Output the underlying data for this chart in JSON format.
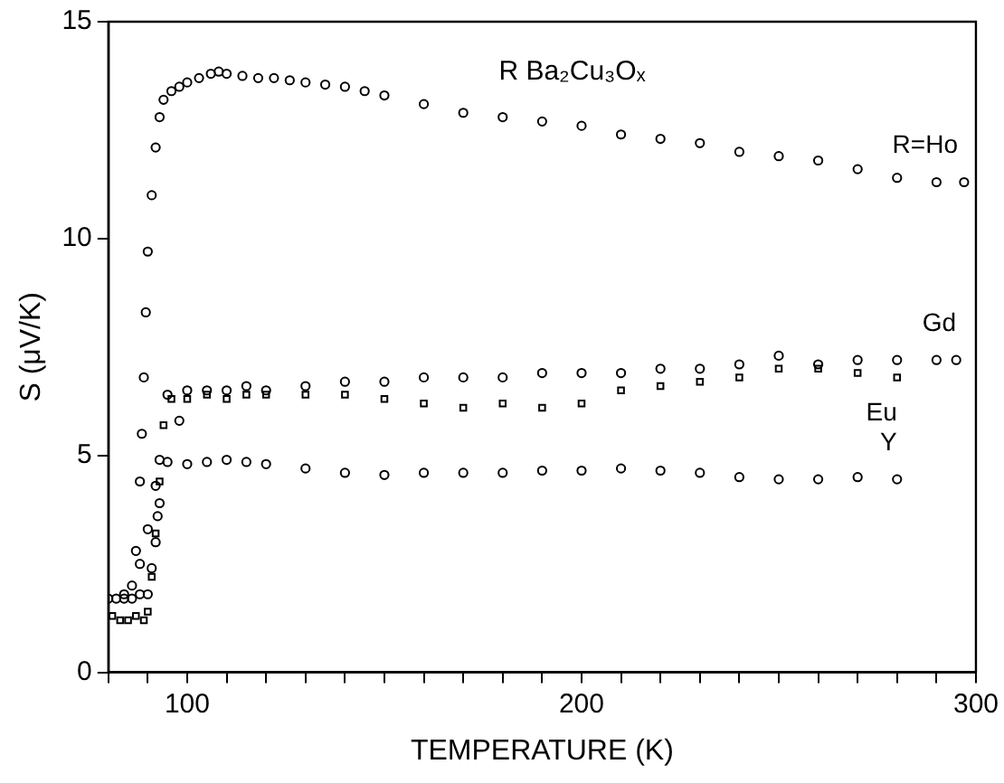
{
  "chart_data": {
    "type": "scatter",
    "xlabel": "TEMPERATURE (K)",
    "ylabel": "S (μV/K)",
    "annotations": [
      "R Ba₂Cu₃Oₓ"
    ],
    "xlim": [
      80,
      300
    ],
    "ylim": [
      0,
      15
    ],
    "xticks": [
      {
        "value": 80,
        "label": null
      },
      {
        "value": 90,
        "label": null
      },
      100,
      {
        "value": 110,
        "label": null
      },
      {
        "value": 120,
        "label": null
      },
      {
        "value": 130,
        "label": null
      },
      {
        "value": 140,
        "label": null
      },
      {
        "value": 150,
        "label": null
      },
      {
        "value": 160,
        "label": null
      },
      {
        "value": 170,
        "label": null
      },
      {
        "value": 180,
        "label": null
      },
      {
        "value": 190,
        "label": null
      },
      200,
      {
        "value": 210,
        "label": null
      },
      {
        "value": 220,
        "label": null
      },
      {
        "value": 230,
        "label": null
      },
      {
        "value": 240,
        "label": null
      },
      {
        "value": 250,
        "label": null
      },
      {
        "value": 260,
        "label": null
      },
      {
        "value": 270,
        "label": null
      },
      {
        "value": 280,
        "label": null
      },
      {
        "value": 290,
        "label": null
      },
      300
    ],
    "yticks": [
      0,
      5,
      10,
      15
    ],
    "grid": false,
    "legend": false,
    "series": [
      {
        "name": "R=Ho",
        "color": "#000000",
        "marker": "circle",
        "x": [
          87,
          88,
          88.5,
          89,
          89.5,
          90,
          91,
          92,
          93,
          94,
          96,
          98,
          100,
          103,
          106,
          108,
          110,
          114,
          118,
          122,
          126,
          130,
          135,
          140,
          145,
          150,
          160,
          170,
          180,
          190,
          200,
          210,
          220,
          230,
          240,
          250,
          260,
          270,
          280,
          290,
          297
        ],
        "values": [
          2.8,
          4.4,
          5.5,
          6.8,
          8.3,
          9.7,
          11.0,
          12.1,
          12.8,
          13.2,
          13.4,
          13.5,
          13.6,
          13.7,
          13.8,
          13.85,
          13.8,
          13.75,
          13.7,
          13.7,
          13.65,
          13.6,
          13.55,
          13.5,
          13.4,
          13.3,
          13.1,
          12.9,
          12.8,
          12.7,
          12.6,
          12.4,
          12.3,
          12.2,
          12.0,
          11.9,
          11.8,
          11.6,
          11.4,
          11.3,
          11.3
        ]
      },
      {
        "name": "Gd",
        "color": "#000000",
        "marker": "circle",
        "x": [
          80,
          82,
          84,
          86,
          88,
          90,
          91,
          92,
          92.5,
          93,
          95,
          98,
          100,
          105,
          110,
          115,
          120,
          130,
          140,
          150,
          160,
          170,
          180,
          190,
          200,
          210,
          220,
          230,
          240,
          250,
          260,
          270,
          280,
          290,
          295
        ],
        "values": [
          1.7,
          1.7,
          1.8,
          1.7,
          1.8,
          1.8,
          2.4,
          3.0,
          3.6,
          3.9,
          6.4,
          5.8,
          6.5,
          6.5,
          6.5,
          6.6,
          6.5,
          6.6,
          6.7,
          6.7,
          6.8,
          6.8,
          6.8,
          6.9,
          6.9,
          6.9,
          7.0,
          7.0,
          7.1,
          7.3,
          7.1,
          7.2,
          7.2,
          7.2,
          7.2
        ]
      },
      {
        "name": "Eu",
        "color": "#000000",
        "marker": "square",
        "x": [
          81,
          83,
          85,
          87,
          89,
          90,
          91,
          92,
          93,
          94,
          96,
          100,
          105,
          110,
          115,
          120,
          130,
          140,
          150,
          160,
          170,
          180,
          190,
          200,
          210,
          220,
          230,
          240,
          250,
          260,
          270,
          280
        ],
        "values": [
          1.3,
          1.2,
          1.2,
          1.3,
          1.2,
          1.4,
          2.2,
          3.2,
          4.4,
          5.7,
          6.3,
          6.3,
          6.4,
          6.3,
          6.4,
          6.4,
          6.4,
          6.4,
          6.3,
          6.2,
          6.1,
          6.2,
          6.1,
          6.2,
          6.5,
          6.6,
          6.7,
          6.8,
          7.0,
          7.0,
          6.9,
          6.8
        ]
      },
      {
        "name": "Y",
        "color": "#000000",
        "marker": "circle",
        "x": [
          84,
          86,
          88,
          90,
          92,
          93,
          95,
          100,
          105,
          110,
          115,
          120,
          130,
          140,
          150,
          160,
          170,
          180,
          190,
          200,
          210,
          220,
          230,
          240,
          250,
          260,
          270,
          280
        ],
        "values": [
          1.7,
          2.0,
          2.5,
          3.3,
          4.3,
          4.9,
          4.85,
          4.8,
          4.85,
          4.9,
          4.85,
          4.8,
          4.7,
          4.6,
          4.55,
          4.6,
          4.6,
          4.6,
          4.65,
          4.65,
          4.7,
          4.65,
          4.6,
          4.5,
          4.45,
          4.45,
          4.5,
          4.45
        ]
      }
    ]
  }
}
